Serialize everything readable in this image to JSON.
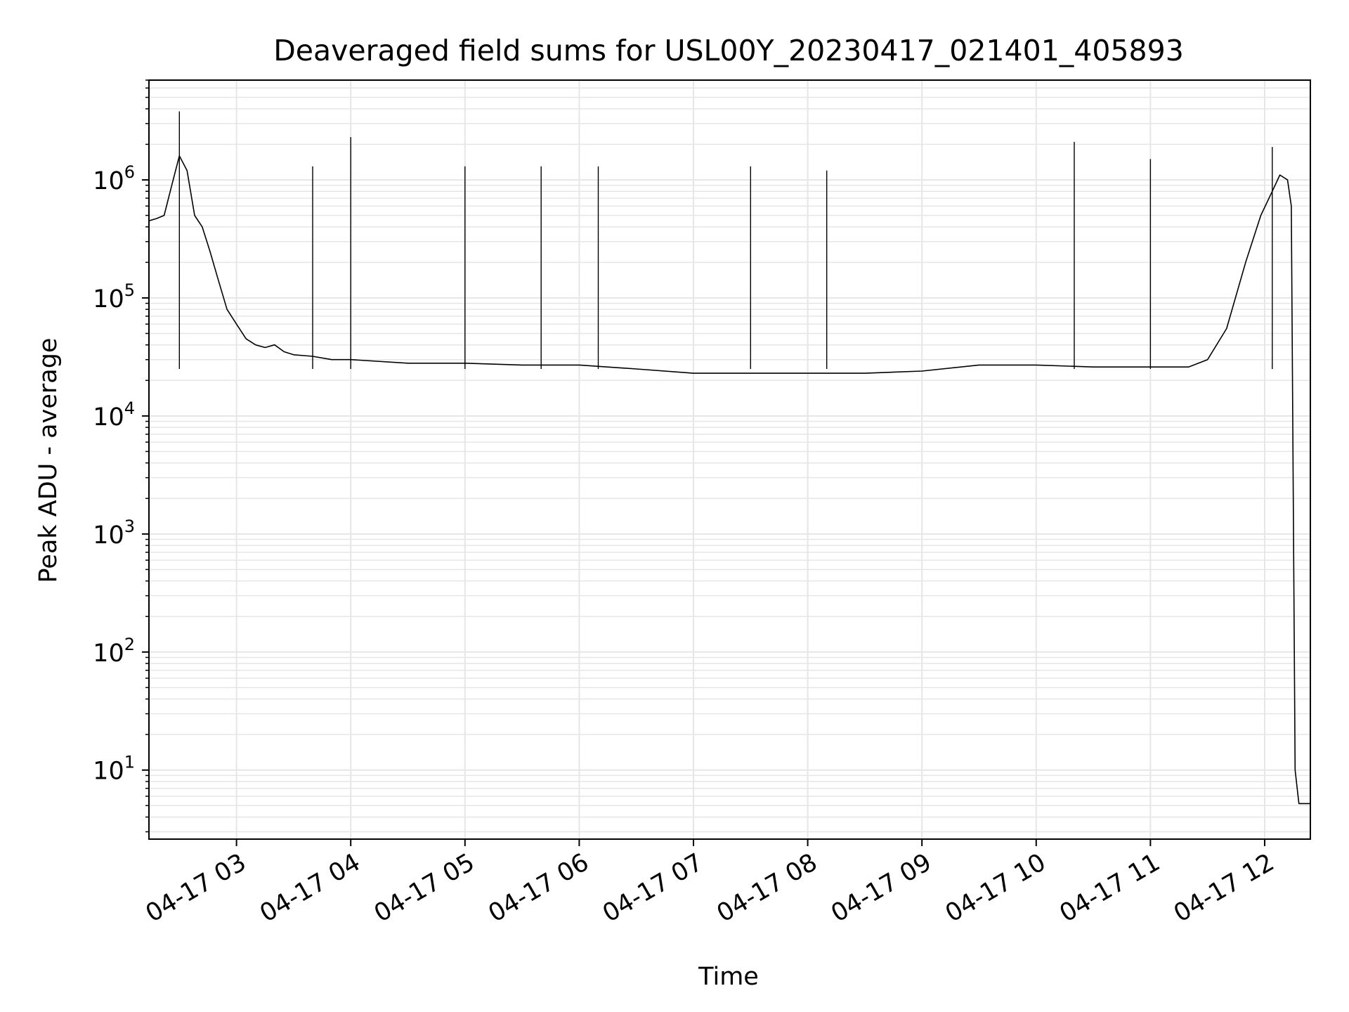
{
  "chart_data": {
    "type": "line",
    "title": "Deaveraged field sums for USL00Y_20230417_021401_405893",
    "xlabel": "Time",
    "ylabel": "Peak ADU - average",
    "yscale": "log",
    "grid": true,
    "grid_minor": true,
    "line_color": "#000000",
    "grid_color": "#e6e6e6",
    "xlim": [
      "2023-04-17T02:14:01",
      "2023-04-17T12:24:00"
    ],
    "ylim": [
      2.6,
      7000000
    ],
    "x_ticks": [
      {
        "value": "2023-04-17T03:00:00",
        "label": "04-17 03"
      },
      {
        "value": "2023-04-17T04:00:00",
        "label": "04-17 04"
      },
      {
        "value": "2023-04-17T05:00:00",
        "label": "04-17 05"
      },
      {
        "value": "2023-04-17T06:00:00",
        "label": "04-17 06"
      },
      {
        "value": "2023-04-17T07:00:00",
        "label": "04-17 07"
      },
      {
        "value": "2023-04-17T08:00:00",
        "label": "04-17 08"
      },
      {
        "value": "2023-04-17T09:00:00",
        "label": "04-17 09"
      },
      {
        "value": "2023-04-17T10:00:00",
        "label": "04-17 10"
      },
      {
        "value": "2023-04-17T11:00:00",
        "label": "04-17 11"
      },
      {
        "value": "2023-04-17T12:00:00",
        "label": "04-17 12"
      }
    ],
    "y_ticks": [
      {
        "value": 10,
        "base": "10",
        "exp": "1"
      },
      {
        "value": 100,
        "base": "10",
        "exp": "2"
      },
      {
        "value": 1000,
        "base": "10",
        "exp": "3"
      },
      {
        "value": 10000,
        "base": "10",
        "exp": "4"
      },
      {
        "value": 100000,
        "base": "10",
        "exp": "5"
      },
      {
        "value": 1000000,
        "base": "10",
        "exp": "6"
      }
    ],
    "series": [
      {
        "x": [
          "2023-04-17T02:14:01",
          "2023-04-17T02:18:00",
          "2023-04-17T02:22:00",
          "2023-04-17T02:26:00",
          "2023-04-17T02:30:00",
          "2023-04-17T02:34:00",
          "2023-04-17T02:38:00",
          "2023-04-17T02:42:00",
          "2023-04-17T02:46:00",
          "2023-04-17T02:50:00",
          "2023-04-17T02:55:00",
          "2023-04-17T03:00:00",
          "2023-04-17T03:05:00",
          "2023-04-17T03:10:00",
          "2023-04-17T03:15:00",
          "2023-04-17T03:20:00",
          "2023-04-17T03:25:00",
          "2023-04-17T03:30:00",
          "2023-04-17T03:40:00",
          "2023-04-17T03:50:00",
          "2023-04-17T04:00:00",
          "2023-04-17T04:30:00",
          "2023-04-17T05:00:00",
          "2023-04-17T05:30:00",
          "2023-04-17T06:00:00",
          "2023-04-17T06:30:00",
          "2023-04-17T07:00:00",
          "2023-04-17T07:30:00",
          "2023-04-17T08:00:00",
          "2023-04-17T08:30:00",
          "2023-04-17T09:00:00",
          "2023-04-17T09:30:00",
          "2023-04-17T10:00:00",
          "2023-04-17T10:30:00",
          "2023-04-17T11:00:00",
          "2023-04-17T11:20:00",
          "2023-04-17T11:30:00",
          "2023-04-17T11:40:00",
          "2023-04-17T11:50:00",
          "2023-04-17T11:58:00",
          "2023-04-17T12:04:00",
          "2023-04-17T12:08:00",
          "2023-04-17T12:12:00",
          "2023-04-17T12:14:00",
          "2023-04-17T12:16:00",
          "2023-04-17T12:18:00",
          "2023-04-17T12:24:00"
        ],
        "y": [
          450000,
          470000,
          500000,
          900000,
          1600000,
          1200000,
          500000,
          400000,
          250000,
          150000,
          80000,
          60000,
          45000,
          40000,
          38000,
          40000,
          35000,
          33000,
          32000,
          30000,
          30000,
          28000,
          28000,
          27000,
          27000,
          25000,
          23000,
          23000,
          23000,
          23000,
          24000,
          27000,
          27000,
          26000,
          26000,
          26000,
          30000,
          55000,
          200000,
          500000,
          800000,
          1100000,
          1000000,
          600000,
          10,
          5.2,
          5.2
        ],
        "spikes": [
          {
            "x": "2023-04-17T02:30:00",
            "y": 3800000
          },
          {
            "x": "2023-04-17T03:40:00",
            "y": 1300000
          },
          {
            "x": "2023-04-17T04:00:00",
            "y": 2300000
          },
          {
            "x": "2023-04-17T05:00:00",
            "y": 1300000
          },
          {
            "x": "2023-04-17T05:40:00",
            "y": 1300000
          },
          {
            "x": "2023-04-17T06:10:00",
            "y": 1300000
          },
          {
            "x": "2023-04-17T07:30:00",
            "y": 1300000
          },
          {
            "x": "2023-04-17T08:10:00",
            "y": 1200000
          },
          {
            "x": "2023-04-17T10:20:00",
            "y": 2100000
          },
          {
            "x": "2023-04-17T11:00:00",
            "y": 1500000
          },
          {
            "x": "2023-04-17T12:04:00",
            "y": 1900000
          }
        ]
      }
    ]
  }
}
